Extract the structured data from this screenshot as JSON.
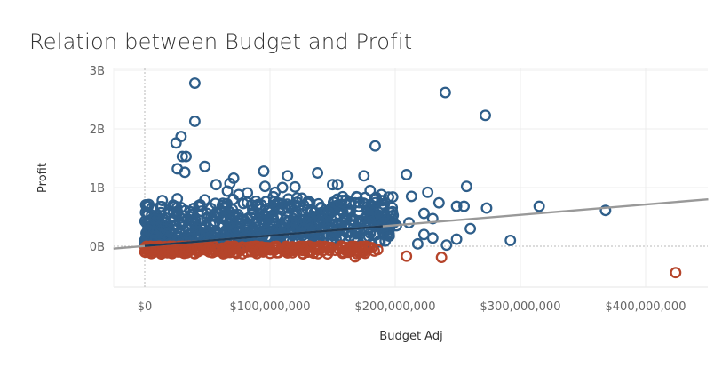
{
  "chart_data": {
    "type": "scatter",
    "title": "Relation between Budget and Profit",
    "xlabel": "Budget Adj",
    "ylabel": "Profit",
    "x_ticks": [
      {
        "value": 0,
        "label": "$0"
      },
      {
        "value": 100000000,
        "label": "$100,000,000"
      },
      {
        "value": 200000000,
        "label": "$200,000,000"
      },
      {
        "value": 300000000,
        "label": "$300,000,000"
      },
      {
        "value": 400000000,
        "label": "$400,000,000"
      }
    ],
    "y_ticks": [
      {
        "value": 0,
        "label": "0B"
      },
      {
        "value": 1000000000,
        "label": "1B"
      },
      {
        "value": 2000000000,
        "label": "2B"
      },
      {
        "value": 3000000000,
        "label": "3B"
      }
    ],
    "xlim": [
      -25000000,
      450000000
    ],
    "ylim": [
      -700000000,
      3200000000
    ],
    "grid": true,
    "colors": {
      "positive": "#2E5E8A",
      "negative": "#B5442A",
      "trend": "#999999",
      "trend_dark": "#1F3B57"
    },
    "trend_line": {
      "x": [
        -25000000,
        450000000
      ],
      "y": [
        -40000000,
        800000000
      ]
    },
    "series": [
      {
        "color": "#2E5E8A",
        "points": [
          [
            40000000,
            2780000000
          ],
          [
            240000000,
            2620000000
          ],
          [
            272000000,
            2230000000
          ],
          [
            40000000,
            2130000000
          ],
          [
            29000000,
            1870000000
          ],
          [
            25000000,
            1760000000
          ],
          [
            184000000,
            1710000000
          ],
          [
            30000000,
            1530000000
          ],
          [
            33000000,
            1530000000
          ],
          [
            48000000,
            1360000000
          ],
          [
            26000000,
            1320000000
          ],
          [
            32000000,
            1260000000
          ],
          [
            95000000,
            1280000000
          ],
          [
            138000000,
            1250000000
          ],
          [
            209000000,
            1220000000
          ],
          [
            114000000,
            1200000000
          ],
          [
            175000000,
            1200000000
          ],
          [
            71000000,
            1160000000
          ],
          [
            57000000,
            1050000000
          ],
          [
            68000000,
            1070000000
          ],
          [
            96000000,
            1020000000
          ],
          [
            110000000,
            1000000000
          ],
          [
            120000000,
            1010000000
          ],
          [
            150000000,
            1050000000
          ],
          [
            154000000,
            1050000000
          ],
          [
            257000000,
            1020000000
          ],
          [
            226000000,
            920000000
          ],
          [
            213000000,
            850000000
          ],
          [
            198000000,
            840000000
          ],
          [
            189000000,
            880000000
          ],
          [
            180000000,
            950000000
          ],
          [
            176000000,
            830000000
          ],
          [
            235000000,
            740000000
          ],
          [
            249000000,
            680000000
          ],
          [
            255000000,
            680000000
          ],
          [
            273000000,
            650000000
          ],
          [
            315000000,
            680000000
          ],
          [
            368000000,
            610000000
          ],
          [
            223000000,
            560000000
          ],
          [
            230000000,
            470000000
          ],
          [
            211000000,
            400000000
          ],
          [
            201000000,
            350000000
          ],
          [
            260000000,
            300000000
          ],
          [
            223000000,
            200000000
          ],
          [
            230000000,
            140000000
          ],
          [
            241000000,
            20000000
          ],
          [
            249000000,
            120000000
          ],
          [
            292000000,
            100000000
          ],
          [
            218000000,
            40000000
          ],
          [
            190000000,
            720000000
          ],
          [
            14000000,
            780000000
          ],
          [
            26000000,
            810000000
          ],
          [
            48000000,
            790000000
          ],
          [
            66000000,
            940000000
          ],
          [
            75000000,
            880000000
          ],
          [
            82000000,
            910000000
          ],
          [
            104000000,
            920000000
          ],
          [
            127000000,
            700000000
          ],
          [
            168000000,
            740000000
          ],
          [
            182000000,
            620000000
          ]
        ]
      },
      {
        "color": "#B5442A",
        "points": [
          [
            424000000,
            -450000000
          ],
          [
            209000000,
            -170000000
          ],
          [
            237000000,
            -190000000
          ],
          [
            168000000,
            -180000000
          ],
          [
            158000000,
            -120000000
          ],
          [
            146000000,
            -130000000
          ],
          [
            130000000,
            -100000000
          ],
          [
            118000000,
            -110000000
          ],
          [
            100000000,
            -120000000
          ],
          [
            85000000,
            -90000000
          ],
          [
            72000000,
            -100000000
          ],
          [
            62000000,
            -80000000
          ],
          [
            50000000,
            -70000000
          ],
          [
            35000000,
            -60000000
          ],
          [
            22000000,
            -50000000
          ],
          [
            12000000,
            -40000000
          ],
          [
            186000000,
            -60000000
          ],
          [
            175000000,
            -90000000
          ],
          [
            152000000,
            -70000000
          ],
          [
            139000000,
            -60000000
          ],
          [
            110000000,
            -60000000
          ],
          [
            92000000,
            -50000000
          ],
          [
            78000000,
            -40000000
          ],
          [
            58000000,
            -40000000
          ],
          [
            42000000,
            -30000000
          ],
          [
            28000000,
            -30000000
          ],
          [
            5000000,
            -20000000
          ]
        ]
      }
    ],
    "dense_clusters": [
      {
        "color": "#2E5E8A",
        "x_range": [
          0,
          200000000
        ],
        "y_range": [
          0,
          700000000
        ],
        "trend_following": true
      },
      {
        "color": "#B5442A",
        "x_range": [
          0,
          185000000
        ],
        "y_range": [
          -130000000,
          0
        ]
      }
    ]
  }
}
